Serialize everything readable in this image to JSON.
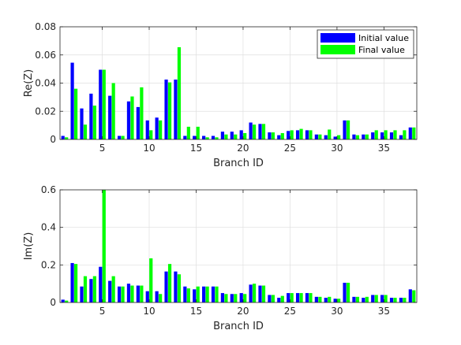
{
  "chart_data": [
    {
      "type": "bar",
      "xlabel": "Branch ID",
      "ylabel": "Re(Z)",
      "ylim": [
        0,
        0.08
      ],
      "yticks": [
        "0",
        "0.02",
        "0.04",
        "0.06",
        "0.08"
      ],
      "xticks": [
        5,
        10,
        15,
        20,
        25,
        30,
        35
      ],
      "grid": true,
      "legend": "top-right",
      "categories": [
        1,
        2,
        3,
        4,
        5,
        6,
        7,
        8,
        9,
        10,
        11,
        12,
        13,
        14,
        15,
        16,
        17,
        18,
        19,
        20,
        21,
        22,
        23,
        24,
        25,
        26,
        27,
        28,
        29,
        30,
        31,
        32,
        33,
        34,
        35,
        36,
        37,
        38
      ],
      "series": [
        {
          "name": "Initial value",
          "color": "#0000ff",
          "values": [
            0.0025,
            0.0545,
            0.022,
            0.0325,
            0.0495,
            0.031,
            0.0025,
            0.027,
            0.023,
            0.0135,
            0.0155,
            0.0425,
            0.0425,
            0.0025,
            0.0025,
            0.0025,
            0.0025,
            0.0055,
            0.0055,
            0.0065,
            0.012,
            0.011,
            0.005,
            0.003,
            0.006,
            0.0065,
            0.0065,
            0.0035,
            0.003,
            0.002,
            0.0135,
            0.0035,
            0.0035,
            0.005,
            0.005,
            0.005,
            0.003,
            0.0085
          ]
        },
        {
          "name": "Final value",
          "color": "#00ff00",
          "values": [
            0.0015,
            0.036,
            0.0105,
            0.024,
            0.0495,
            0.04,
            0.0025,
            0.0305,
            0.037,
            0.0065,
            0.0135,
            0.0405,
            0.0655,
            0.009,
            0.009,
            0.0015,
            0.0015,
            0.0035,
            0.0035,
            0.0045,
            0.0105,
            0.011,
            0.005,
            0.0045,
            0.0065,
            0.0075,
            0.0065,
            0.0035,
            0.007,
            0.003,
            0.0135,
            0.003,
            0.0035,
            0.0065,
            0.0065,
            0.0065,
            0.0065,
            0.0085
          ]
        }
      ]
    },
    {
      "type": "bar",
      "xlabel": "Branch ID",
      "ylabel": "Im(Z)",
      "ylim": [
        0,
        0.6
      ],
      "yticks": [
        "0",
        "0.2",
        "0.4",
        "0.6"
      ],
      "xticks": [
        5,
        10,
        15,
        20,
        25,
        30,
        35
      ],
      "grid": true,
      "categories": [
        1,
        2,
        3,
        4,
        5,
        6,
        7,
        8,
        9,
        10,
        11,
        12,
        13,
        14,
        15,
        16,
        17,
        18,
        19,
        20,
        21,
        22,
        23,
        24,
        25,
        26,
        27,
        28,
        29,
        30,
        31,
        32,
        33,
        34,
        35,
        36,
        37,
        38
      ],
      "series": [
        {
          "name": "Initial value",
          "color": "#0000ff",
          "values": [
            0.015,
            0.21,
            0.085,
            0.125,
            0.19,
            0.115,
            0.085,
            0.1,
            0.09,
            0.06,
            0.06,
            0.165,
            0.165,
            0.085,
            0.07,
            0.085,
            0.085,
            0.05,
            0.045,
            0.05,
            0.095,
            0.09,
            0.04,
            0.025,
            0.05,
            0.05,
            0.05,
            0.03,
            0.025,
            0.02,
            0.105,
            0.03,
            0.025,
            0.04,
            0.04,
            0.025,
            0.025,
            0.07
          ]
        },
        {
          "name": "Final value",
          "color": "#00ff00",
          "values": [
            0.01,
            0.205,
            0.14,
            0.14,
            0.6,
            0.14,
            0.085,
            0.09,
            0.09,
            0.235,
            0.045,
            0.205,
            0.15,
            0.075,
            0.085,
            0.085,
            0.085,
            0.045,
            0.045,
            0.045,
            0.1,
            0.09,
            0.04,
            0.035,
            0.05,
            0.05,
            0.05,
            0.03,
            0.03,
            0.02,
            0.105,
            0.03,
            0.03,
            0.04,
            0.04,
            0.025,
            0.025,
            0.065
          ]
        }
      ]
    }
  ]
}
